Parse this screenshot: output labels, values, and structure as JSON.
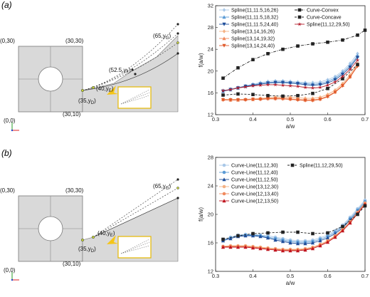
{
  "panels": [
    {
      "label": "(a)",
      "geo": {
        "corners": [
          "(0,30)",
          "(30,30)",
          "(0,0)",
          "(30,10)"
        ],
        "points": [
          {
            "sub": "D",
            "label": "(35,y",
            "close": ")"
          },
          {
            "sub": "E",
            "label": "(40,y",
            "close": ")"
          },
          {
            "sub": "F",
            "label": "(52.5,y",
            "close": ")"
          },
          {
            "sub": "G",
            "label": "(65,y",
            "close": ")"
          }
        ]
      }
    },
    {
      "label": "(b)",
      "geo": {
        "corners": [
          "(0,30)",
          "(30,30)",
          "(0,0)",
          "(30,10)"
        ],
        "points": [
          {
            "sub": "D",
            "label": "(35,y",
            "close": ")"
          },
          {
            "sub": "E",
            "label": "(40,y",
            "close": ")"
          },
          {
            "sub": "G",
            "label": "(65,y",
            "close": ")"
          }
        ]
      }
    }
  ],
  "chart_data": [
    {
      "type": "line",
      "xlabel": "a/w",
      "ylabel": "f(a/w)",
      "xlim": [
        0.3,
        0.7
      ],
      "ylim": [
        12,
        32
      ],
      "xticks": [
        "0.3",
        "0.4",
        "0.5",
        "0.6",
        "0.7"
      ],
      "yticks": [
        "12",
        "16",
        "20",
        "24",
        "28",
        "32"
      ],
      "series": [
        {
          "name": "Spline(11,11.5,16,26)",
          "color": "#a9c8e8",
          "marker": "diamond",
          "dash": "solid",
          "x": [
            0.32,
            0.34,
            0.36,
            0.38,
            0.4,
            0.42,
            0.44,
            0.46,
            0.48,
            0.5,
            0.52,
            0.54,
            0.56,
            0.58,
            0.6,
            0.62,
            0.64,
            0.66,
            0.68
          ],
          "y": [
            16.4,
            16.7,
            17.0,
            17.3,
            17.6,
            17.9,
            18.1,
            18.2,
            18.2,
            18.1,
            18.0,
            17.9,
            17.9,
            18.0,
            18.4,
            19.0,
            20.0,
            21.4,
            23.2
          ]
        },
        {
          "name": "Spline(11,11.5,18,32)",
          "color": "#5b9bd5",
          "marker": "triangle-up",
          "dash": "solid",
          "x": [
            0.32,
            0.34,
            0.36,
            0.38,
            0.4,
            0.42,
            0.44,
            0.46,
            0.48,
            0.5,
            0.52,
            0.54,
            0.56,
            0.58,
            0.6,
            0.62,
            0.64,
            0.66,
            0.68
          ],
          "y": [
            16.3,
            16.6,
            16.9,
            17.2,
            17.5,
            17.7,
            17.9,
            18.0,
            18.0,
            17.9,
            17.8,
            17.7,
            17.6,
            17.7,
            18.1,
            18.7,
            19.7,
            21.0,
            22.8
          ]
        },
        {
          "name": "Spline(11,11.5,24,40)",
          "color": "#1f4e9a",
          "marker": "triangle-down",
          "dash": "solid",
          "x": [
            0.32,
            0.34,
            0.36,
            0.38,
            0.4,
            0.42,
            0.44,
            0.46,
            0.48,
            0.5,
            0.52,
            0.54,
            0.56,
            0.58,
            0.6,
            0.62,
            0.64,
            0.66,
            0.68
          ],
          "y": [
            16.3,
            16.6,
            16.9,
            17.2,
            17.4,
            17.6,
            17.8,
            17.9,
            17.9,
            17.8,
            17.7,
            17.5,
            17.4,
            17.5,
            17.8,
            18.4,
            19.4,
            20.7,
            22.5
          ]
        },
        {
          "name": "Spline(13,14,16,26)",
          "color": "#f4b183",
          "marker": "diamond",
          "dash": "solid",
          "x": [
            0.32,
            0.34,
            0.36,
            0.38,
            0.4,
            0.42,
            0.44,
            0.46,
            0.48,
            0.5,
            0.52,
            0.54,
            0.56,
            0.58,
            0.6,
            0.62,
            0.64,
            0.66,
            0.68
          ],
          "y": [
            14.8,
            14.8,
            14.8,
            14.8,
            14.9,
            15.0,
            15.1,
            15.2,
            15.2,
            15.2,
            15.1,
            15.0,
            15.0,
            15.2,
            15.7,
            16.5,
            17.7,
            19.3,
            21.4
          ]
        },
        {
          "name": "Spline(13,14,19,32)",
          "color": "#f08a5d",
          "marker": "triangle-up",
          "dash": "solid",
          "x": [
            0.32,
            0.34,
            0.36,
            0.38,
            0.4,
            0.42,
            0.44,
            0.46,
            0.48,
            0.5,
            0.52,
            0.54,
            0.56,
            0.58,
            0.6,
            0.62,
            0.64,
            0.66,
            0.68
          ],
          "y": [
            14.8,
            14.7,
            14.7,
            14.8,
            14.8,
            14.9,
            15.0,
            15.0,
            15.0,
            14.9,
            14.8,
            14.7,
            14.7,
            14.9,
            15.4,
            16.2,
            17.4,
            19.0,
            21.1
          ]
        },
        {
          "name": "Spline(13,14,24,40)",
          "color": "#e05a2b",
          "marker": "triangle-down",
          "dash": "solid",
          "x": [
            0.32,
            0.34,
            0.36,
            0.38,
            0.4,
            0.42,
            0.44,
            0.46,
            0.48,
            0.5,
            0.52,
            0.54,
            0.56,
            0.58,
            0.6,
            0.62,
            0.64,
            0.66,
            0.68
          ],
          "y": [
            14.7,
            14.7,
            14.7,
            14.7,
            14.8,
            14.8,
            14.9,
            14.9,
            14.9,
            14.8,
            14.7,
            14.6,
            14.6,
            14.8,
            15.3,
            16.1,
            17.3,
            18.9,
            20.9
          ]
        },
        {
          "name": "Curve-Convex",
          "color": "#222222",
          "marker": "square",
          "dash": "dashdot",
          "x": [
            0.32,
            0.36,
            0.4,
            0.44,
            0.48,
            0.52,
            0.56,
            0.6,
            0.64,
            0.68,
            0.7
          ],
          "y": [
            18.7,
            20.6,
            22.1,
            23.2,
            24.0,
            24.6,
            25.0,
            25.3,
            25.7,
            26.6,
            27.5
          ]
        },
        {
          "name": "Curve-Concave",
          "color": "#222222",
          "marker": "square",
          "dash": "dashed",
          "x": [
            0.32,
            0.36,
            0.4,
            0.44,
            0.48,
            0.52,
            0.56,
            0.6,
            0.64,
            0.68
          ],
          "y": [
            15.6,
            15.8,
            15.7,
            15.5,
            15.4,
            15.5,
            15.9,
            16.8,
            18.6,
            21.2
          ]
        },
        {
          "name": "Spline(11,12,29,50)",
          "color": "#b41f2e",
          "marker": "star",
          "dash": "solid",
          "x": [
            0.32,
            0.34,
            0.36,
            0.38,
            0.4,
            0.42,
            0.44,
            0.46,
            0.48,
            0.5,
            0.52,
            0.54,
            0.56,
            0.58,
            0.6,
            0.62,
            0.64,
            0.66,
            0.68
          ],
          "y": [
            16.4,
            16.6,
            16.9,
            17.1,
            17.3,
            17.4,
            17.5,
            17.5,
            17.4,
            17.3,
            17.2,
            17.0,
            16.9,
            17.0,
            17.4,
            18.0,
            19.0,
            20.3,
            22.0
          ]
        }
      ]
    },
    {
      "type": "line",
      "xlabel": "a/w",
      "ylabel": "f(a/w)",
      "xlim": [
        0.3,
        0.7
      ],
      "ylim": [
        12,
        28
      ],
      "xticks": [
        "0.3",
        "0.4",
        "0.5",
        "0.6",
        "0.7"
      ],
      "yticks": [
        "12",
        "16",
        "20",
        "24",
        "28"
      ],
      "series": [
        {
          "name": "Curve-Line(11,12,30)",
          "color": "#a9c8e8",
          "marker": "circle",
          "dash": "solid",
          "x": [
            0.32,
            0.34,
            0.36,
            0.38,
            0.4,
            0.42,
            0.44,
            0.46,
            0.48,
            0.5,
            0.52,
            0.54,
            0.56,
            0.58,
            0.6,
            0.62,
            0.64,
            0.66,
            0.68,
            0.7
          ],
          "y": [
            16.4,
            16.8,
            17.1,
            17.2,
            17.2,
            17.1,
            17.0,
            16.8,
            16.6,
            16.4,
            16.3,
            16.3,
            16.4,
            16.7,
            17.1,
            17.7,
            18.5,
            19.6,
            20.8,
            22.0
          ]
        },
        {
          "name": "Curve-Line(11,12,40)",
          "color": "#5b9bd5",
          "marker": "circle",
          "dash": "solid",
          "x": [
            0.32,
            0.34,
            0.36,
            0.38,
            0.4,
            0.42,
            0.44,
            0.46,
            0.48,
            0.5,
            0.52,
            0.54,
            0.56,
            0.58,
            0.6,
            0.62,
            0.64,
            0.66,
            0.68,
            0.7
          ],
          "y": [
            16.4,
            16.7,
            17.0,
            17.1,
            17.1,
            17.0,
            16.8,
            16.6,
            16.4,
            16.2,
            16.1,
            16.1,
            16.2,
            16.5,
            16.9,
            17.5,
            18.3,
            19.4,
            20.6,
            21.8
          ]
        },
        {
          "name": "Curve-Line(11,12,50)",
          "color": "#1f4e9a",
          "marker": "triangle-up",
          "dash": "solid",
          "x": [
            0.32,
            0.34,
            0.36,
            0.38,
            0.4,
            0.42,
            0.44,
            0.46,
            0.48,
            0.5,
            0.52,
            0.54,
            0.56,
            0.58,
            0.6,
            0.62,
            0.64,
            0.66,
            0.68,
            0.7
          ],
          "y": [
            16.3,
            16.6,
            16.9,
            17.0,
            17.0,
            16.9,
            16.7,
            16.4,
            16.2,
            16.0,
            15.9,
            15.9,
            16.0,
            16.3,
            16.7,
            17.3,
            18.1,
            19.2,
            20.4,
            21.6
          ]
        },
        {
          "name": "Curve-Line(13,12,30)",
          "color": "#f4b183",
          "marker": "circle",
          "dash": "solid",
          "x": [
            0.32,
            0.34,
            0.36,
            0.38,
            0.4,
            0.42,
            0.44,
            0.46,
            0.48,
            0.5,
            0.52,
            0.54,
            0.56,
            0.58,
            0.6,
            0.62,
            0.64,
            0.66,
            0.68,
            0.7
          ],
          "y": [
            15.5,
            15.6,
            15.6,
            15.6,
            15.5,
            15.4,
            15.3,
            15.2,
            15.1,
            15.1,
            15.1,
            15.2,
            15.4,
            15.8,
            16.3,
            17.0,
            17.9,
            19.0,
            20.3,
            21.6
          ]
        },
        {
          "name": "Curve-Line(12,13,40)",
          "color": "#f08a5d",
          "marker": "circle",
          "dash": "solid",
          "x": [
            0.32,
            0.34,
            0.36,
            0.38,
            0.4,
            0.42,
            0.44,
            0.46,
            0.48,
            0.5,
            0.52,
            0.54,
            0.56,
            0.58,
            0.6,
            0.62,
            0.64,
            0.66,
            0.68,
            0.7
          ],
          "y": [
            15.5,
            15.5,
            15.5,
            15.5,
            15.4,
            15.3,
            15.2,
            15.1,
            15.0,
            15.0,
            15.0,
            15.1,
            15.3,
            15.7,
            16.2,
            16.9,
            17.8,
            18.9,
            20.2,
            21.5
          ]
        },
        {
          "name": "Curve-Line(12,13,50)",
          "color": "#c0141e",
          "marker": "triangle-up",
          "dash": "solid",
          "x": [
            0.32,
            0.34,
            0.36,
            0.38,
            0.4,
            0.42,
            0.44,
            0.46,
            0.48,
            0.5,
            0.52,
            0.54,
            0.56,
            0.58,
            0.6,
            0.62,
            0.64,
            0.66,
            0.68,
            0.7
          ],
          "y": [
            15.4,
            15.4,
            15.4,
            15.4,
            15.3,
            15.2,
            15.1,
            15.0,
            14.9,
            14.9,
            14.9,
            15.0,
            15.2,
            15.6,
            16.1,
            16.8,
            17.7,
            18.8,
            20.1,
            21.4
          ]
        },
        {
          "name": "Spline(11,12,29,50)",
          "color": "#222222",
          "marker": "square",
          "dash": "dashed",
          "x": [
            0.32,
            0.36,
            0.4,
            0.44,
            0.48,
            0.52,
            0.56,
            0.6,
            0.64,
            0.68,
            0.7
          ],
          "y": [
            16.5,
            17.0,
            17.3,
            17.4,
            17.5,
            17.5,
            17.3,
            17.4,
            18.3,
            20.0,
            21.2
          ]
        }
      ]
    }
  ]
}
